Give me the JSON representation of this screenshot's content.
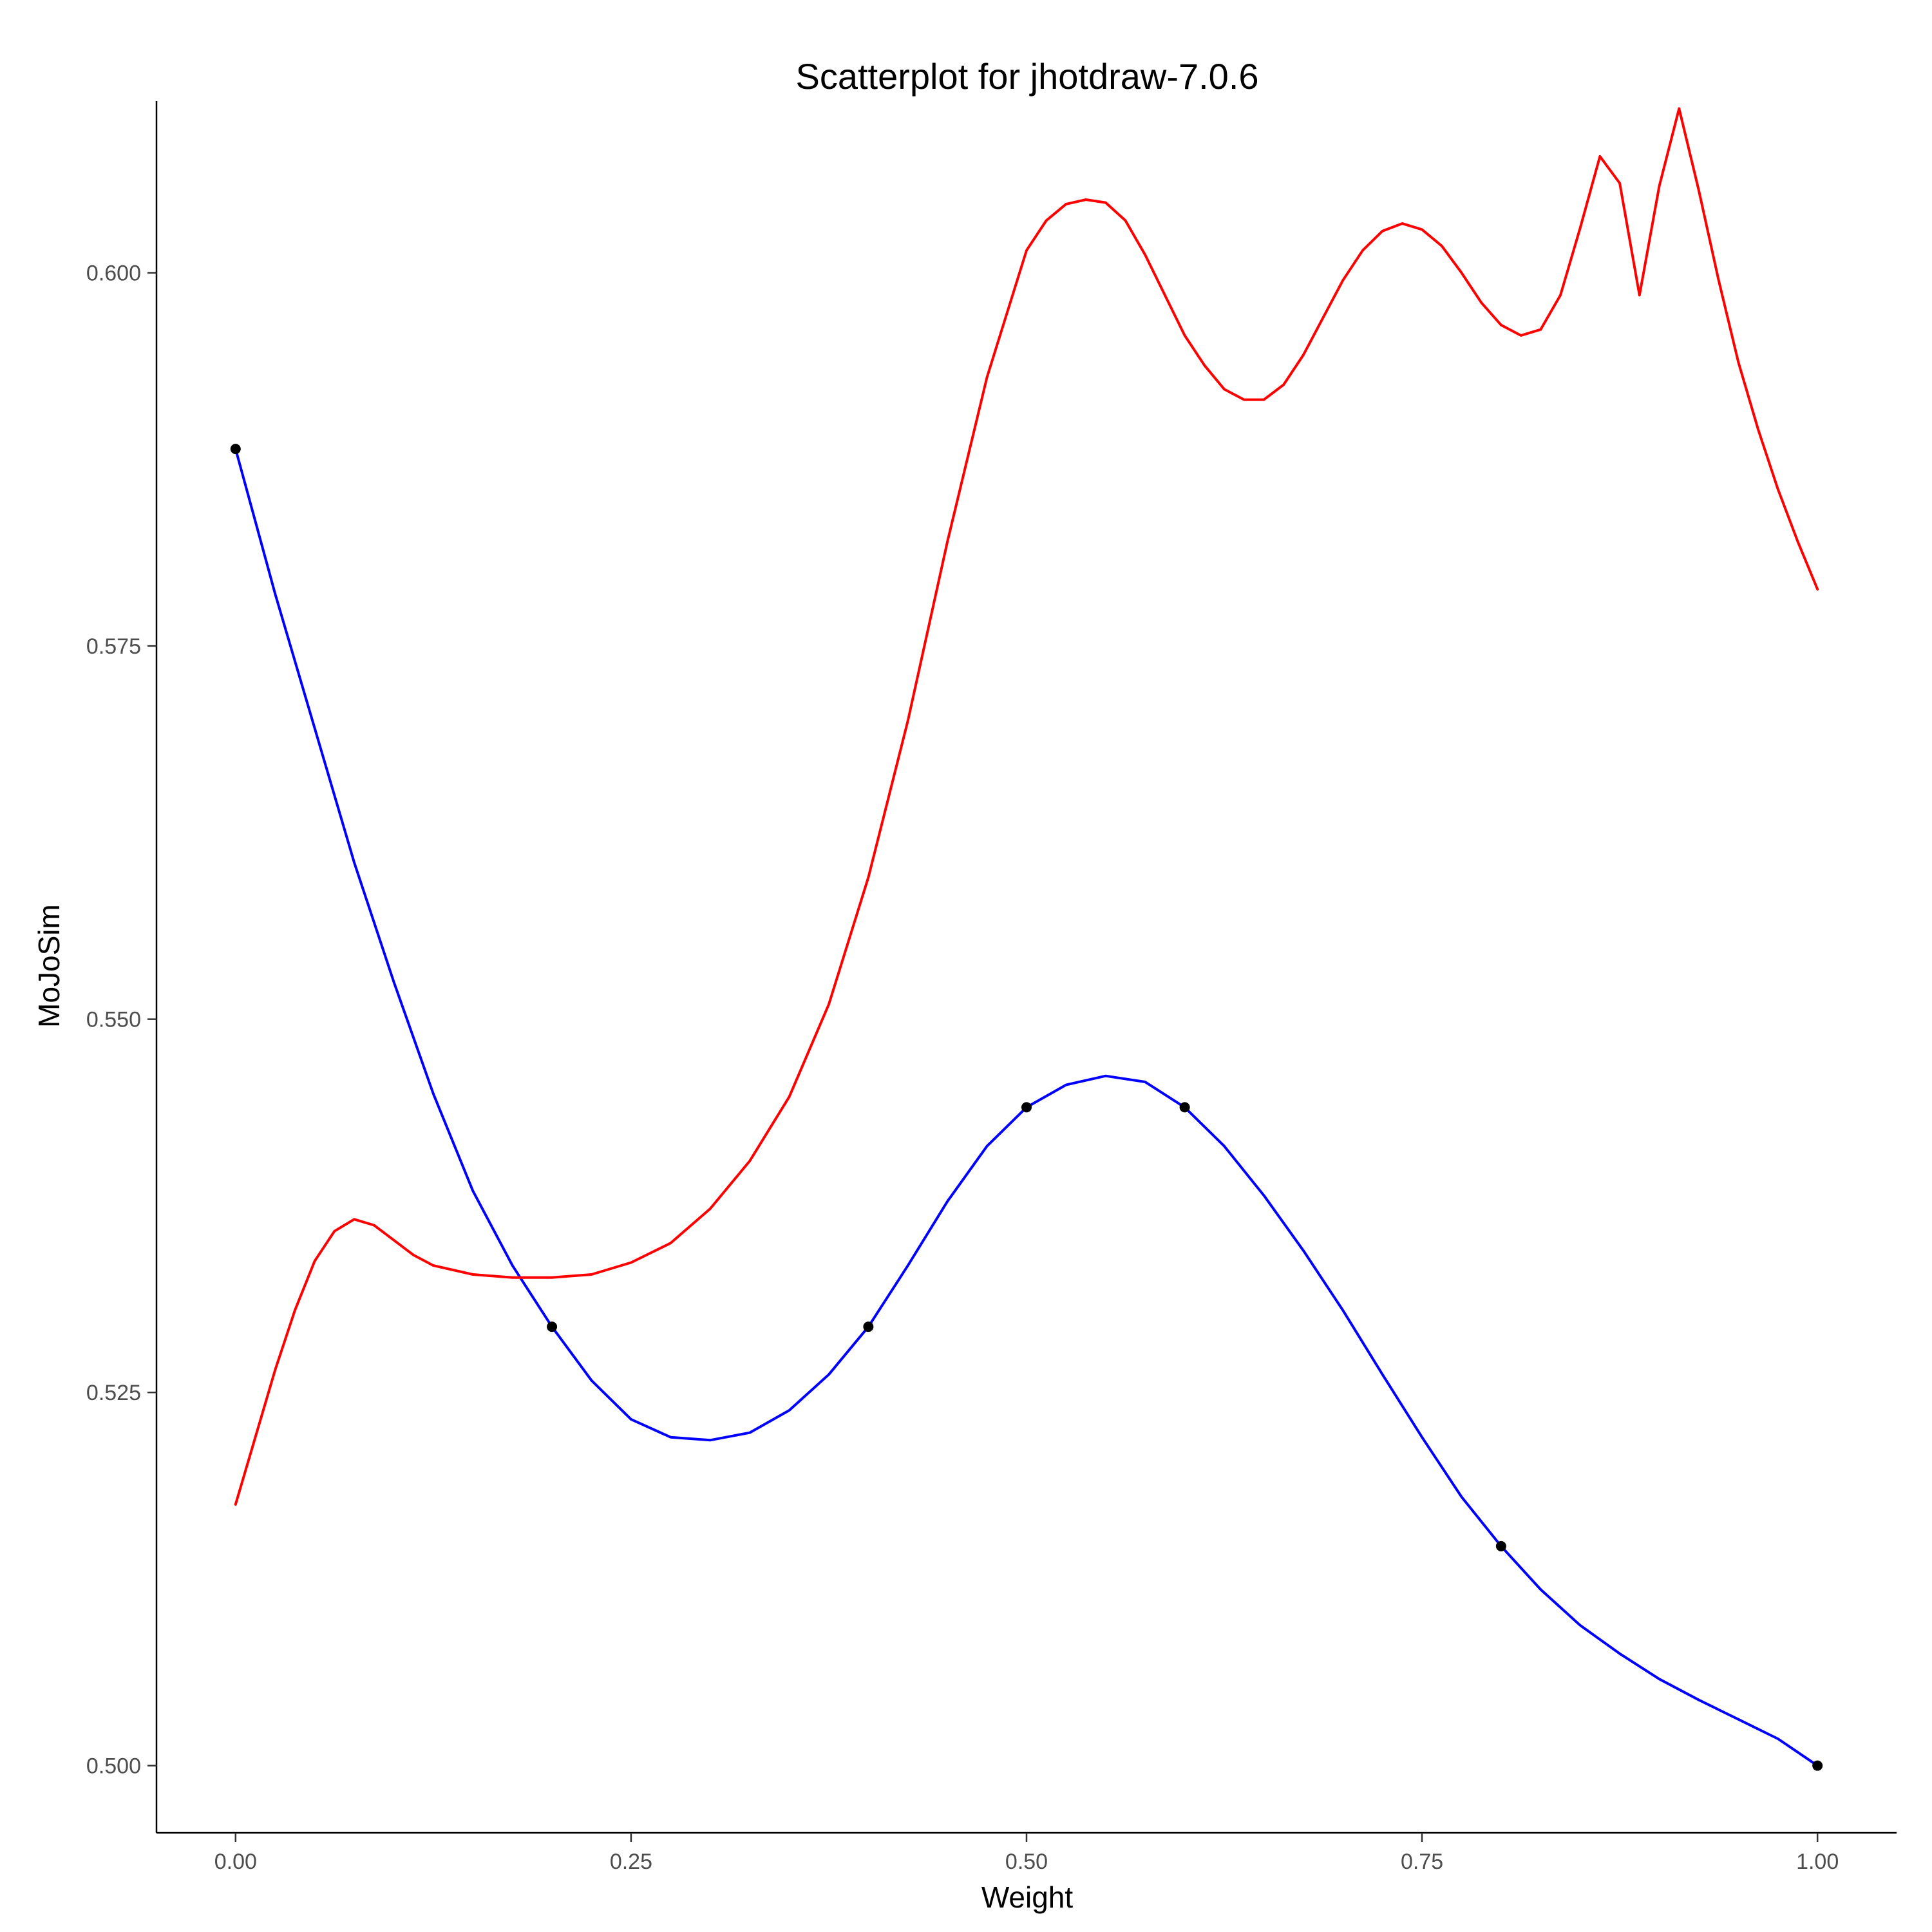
{
  "chart_data": {
    "type": "scatter",
    "title": "Scatterplot for jhotdraw-7.0.6",
    "xlabel": "Weight",
    "ylabel": "MoJoSim",
    "xlim": [
      -0.05,
      1.05
    ],
    "ylim": [
      0.4955,
      0.6115
    ],
    "x_ticks": [
      0.0,
      0.25,
      0.5,
      0.75,
      1.0
    ],
    "x_tick_labels": [
      "0.00",
      "0.25",
      "0.50",
      "0.75",
      "1.00"
    ],
    "y_ticks": [
      0.5,
      0.525,
      0.55,
      0.575,
      0.6
    ],
    "y_tick_labels": [
      "0.500",
      "0.525",
      "0.550",
      "0.575",
      "0.600"
    ],
    "grid": false,
    "legend": "none",
    "points": {
      "color": "#000000",
      "x": [
        0.0,
        0.2,
        0.4,
        0.5,
        0.6,
        0.8,
        1.0
      ],
      "y": [
        0.5882,
        0.5294,
        0.5294,
        0.5441,
        0.5441,
        0.5147,
        0.5
      ]
    },
    "series": [
      {
        "color": "#0000ff",
        "x": [
          0.0,
          0.025,
          0.05,
          0.075,
          0.1,
          0.125,
          0.15,
          0.175,
          0.2,
          0.225,
          0.25,
          0.275,
          0.3,
          0.325,
          0.35,
          0.375,
          0.4,
          0.425,
          0.45,
          0.475,
          0.5,
          0.525,
          0.55,
          0.575,
          0.6,
          0.625,
          0.65,
          0.675,
          0.7,
          0.725,
          0.75,
          0.775,
          0.8,
          0.825,
          0.85,
          0.875,
          0.9,
          0.925,
          0.95,
          0.975,
          1.0
        ],
        "y": [
          0.5882,
          0.5785,
          0.5695,
          0.5605,
          0.5525,
          0.545,
          0.5385,
          0.5335,
          0.5294,
          0.5258,
          0.5232,
          0.522,
          0.5218,
          0.5223,
          0.5238,
          0.5262,
          0.5294,
          0.5335,
          0.5378,
          0.5415,
          0.5441,
          0.5456,
          0.5462,
          0.5458,
          0.5441,
          0.5415,
          0.5382,
          0.5345,
          0.5305,
          0.5262,
          0.522,
          0.518,
          0.5147,
          0.5118,
          0.5094,
          0.5075,
          0.5058,
          0.5044,
          0.5031,
          0.5018,
          0.5
        ]
      },
      {
        "color": "#ff0000",
        "x": [
          0.0,
          0.0125,
          0.025,
          0.0375,
          0.05,
          0.0625,
          0.075,
          0.0875,
          0.1,
          0.1125,
          0.125,
          0.15,
          0.175,
          0.2,
          0.225,
          0.25,
          0.275,
          0.3,
          0.325,
          0.35,
          0.375,
          0.4,
          0.425,
          0.45,
          0.475,
          0.5,
          0.5125,
          0.525,
          0.5375,
          0.55,
          0.5625,
          0.575,
          0.5875,
          0.6,
          0.6125,
          0.625,
          0.6375,
          0.65,
          0.6625,
          0.675,
          0.6875,
          0.7,
          0.7125,
          0.725,
          0.7375,
          0.75,
          0.7625,
          0.775,
          0.7875,
          0.8,
          0.8125,
          0.825,
          0.8375,
          0.85,
          0.8625,
          0.875,
          0.8875,
          0.9,
          0.9125,
          0.925,
          0.9375,
          0.95,
          0.9625,
          0.975,
          0.9875,
          1.0
        ],
        "y": [
          0.5175,
          0.522,
          0.5265,
          0.5305,
          0.5338,
          0.5358,
          0.5366,
          0.5362,
          0.5352,
          0.5342,
          0.5335,
          0.5329,
          0.5327,
          0.5327,
          0.5329,
          0.5337,
          0.535,
          0.5373,
          0.5405,
          0.5448,
          0.551,
          0.5595,
          0.57,
          0.582,
          0.593,
          0.6015,
          0.6035,
          0.6046,
          0.6049,
          0.6047,
          0.6035,
          0.6012,
          0.5985,
          0.5958,
          0.5938,
          0.5922,
          0.5915,
          0.5915,
          0.5925,
          0.5945,
          0.597,
          0.5995,
          0.6015,
          0.6028,
          0.6033,
          0.6029,
          0.6018,
          0.6,
          0.598,
          0.5965,
          0.5958,
          0.5962,
          0.5985,
          0.603,
          0.6078,
          0.606,
          0.5985,
          0.6058,
          0.611,
          0.6055,
          0.5995,
          0.594,
          0.5895,
          0.5855,
          0.582,
          0.5788
        ]
      }
    ]
  }
}
